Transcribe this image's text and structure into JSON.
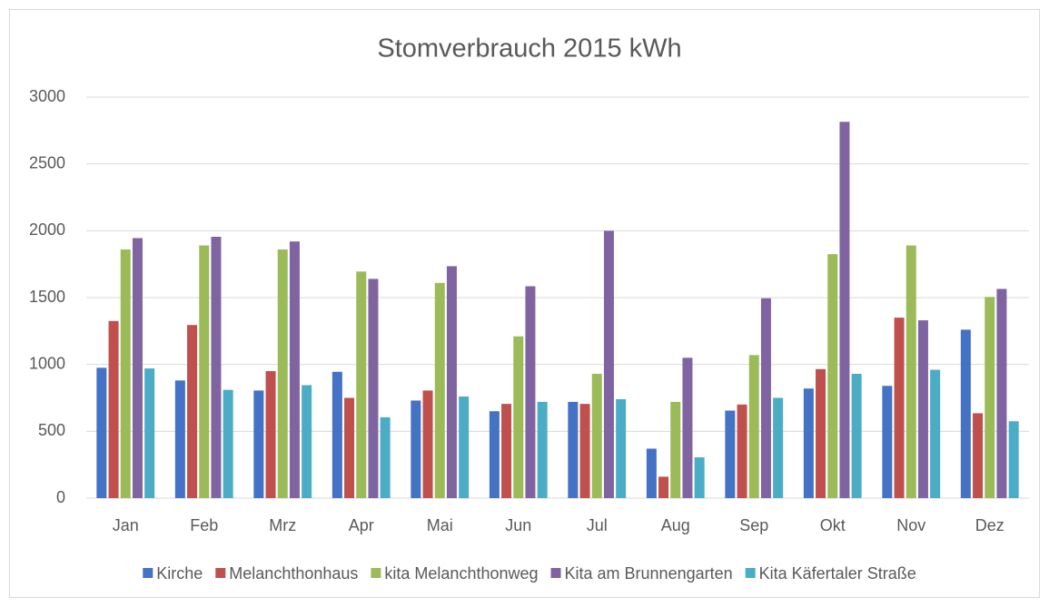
{
  "chart_data": {
    "type": "bar",
    "title": "Stomverbrauch 2015 kWh",
    "categories": [
      "Jan",
      "Feb",
      "Mrz",
      "Apr",
      "Mai",
      "Jun",
      "Jul",
      "Aug",
      "Sep",
      "Okt",
      "Nov",
      "Dez"
    ],
    "series": [
      {
        "name": "Kirche",
        "color": "#4472c4",
        "values": [
          975,
          880,
          805,
          945,
          730,
          650,
          720,
          370,
          655,
          820,
          840,
          1260
        ]
      },
      {
        "name": "Melanchthonhaus",
        "color": "#c0504d",
        "values": [
          1325,
          1295,
          950,
          750,
          805,
          705,
          705,
          160,
          700,
          965,
          1350,
          635
        ]
      },
      {
        "name": "kita Melanchthonweg",
        "color": "#9bbb59",
        "values": [
          1860,
          1890,
          1860,
          1695,
          1610,
          1210,
          930,
          720,
          1070,
          1825,
          1890,
          1505
        ]
      },
      {
        "name": "Kita am Brunnengarten",
        "color": "#8064a2",
        "values": [
          1945,
          1955,
          1920,
          1640,
          1735,
          1585,
          2000,
          1050,
          1495,
          2815,
          1330,
          1565
        ]
      },
      {
        "name": "Kita Käfertaler Straße",
        "color": "#4bacc6",
        "values": [
          970,
          810,
          845,
          605,
          760,
          720,
          740,
          305,
          750,
          930,
          960,
          575
        ]
      }
    ],
    "ylim": [
      0,
      3000
    ],
    "yticks": [
      0,
      500,
      1000,
      1500,
      2000,
      2500,
      3000
    ],
    "grid": true,
    "legend": "bottom"
  }
}
